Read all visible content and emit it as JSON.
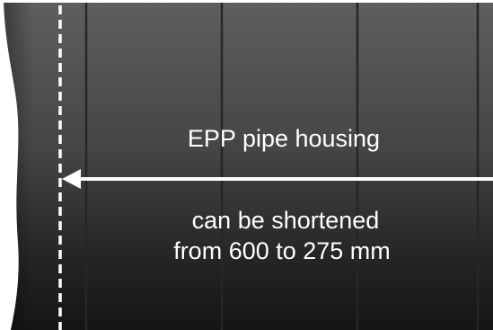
{
  "diagram": {
    "title": "EPP pipe housing",
    "note_line_1": "can be shortened",
    "note_line_2": "from 600 to 275 mm",
    "colors": {
      "housing_top": "#5c5c5c",
      "housing_bottom": "#141414",
      "ring_line": "#2a2a2a",
      "cut_line": "#ffffff",
      "arrow": "#ffffff",
      "text": "#ffffff"
    }
  }
}
